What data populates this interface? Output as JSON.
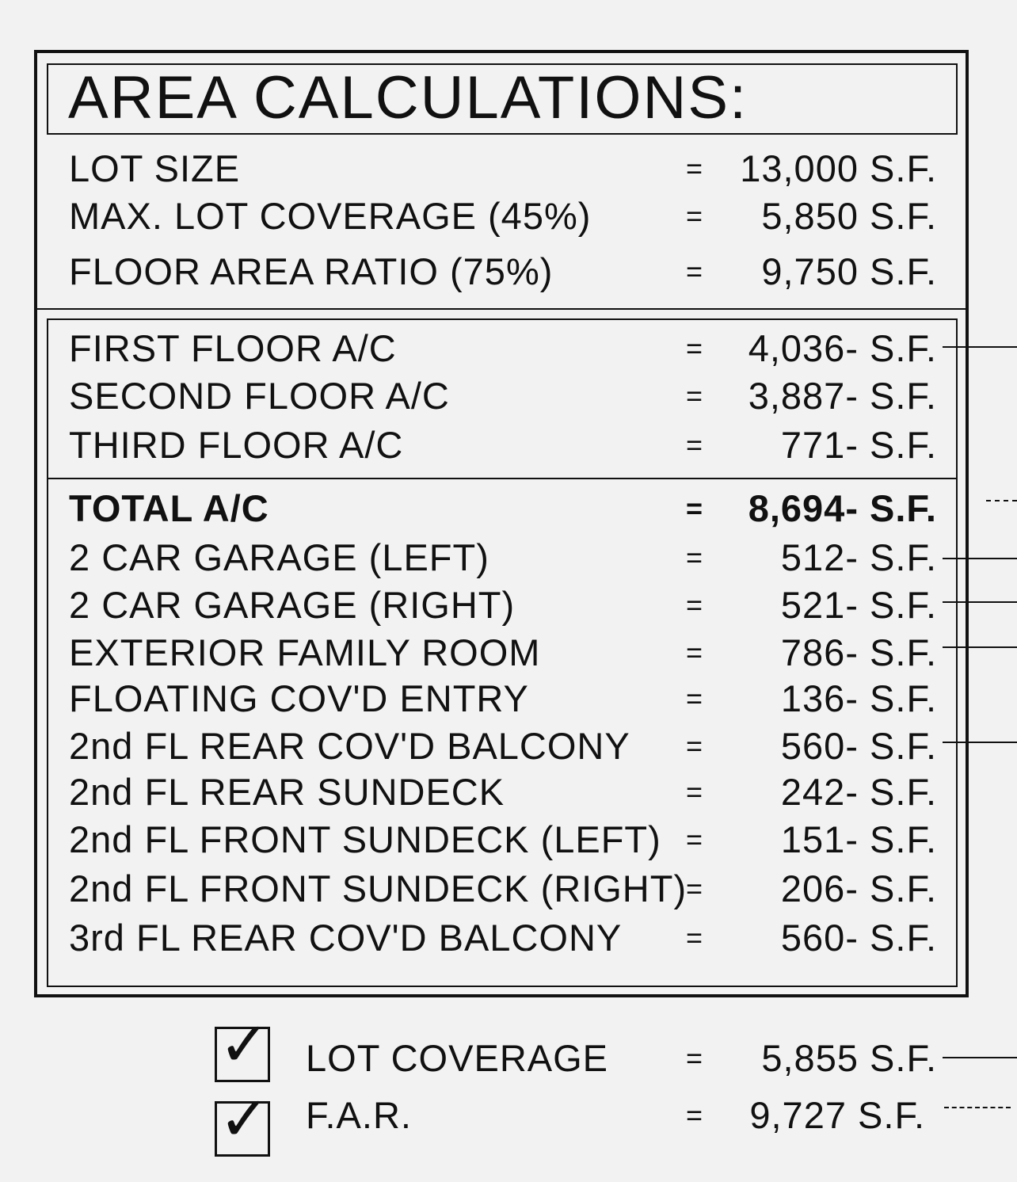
{
  "title": "AREA CALCULATIONS:",
  "lot_section": [
    {
      "label": "LOT SIZE",
      "eq": "=",
      "value": "13,000 S.F."
    },
    {
      "label": "MAX. LOT COVERAGE (45%)",
      "eq": "=",
      "value": "5,850 S.F."
    },
    {
      "label": "FLOOR AREA RATIO (75%)",
      "eq": "=",
      "value": "9,750 S.F."
    }
  ],
  "ac_section": [
    {
      "label": "FIRST FLOOR A/C",
      "eq": "=",
      "value": "4,036- S.F."
    },
    {
      "label": "SECOND FLOOR A/C",
      "eq": "=",
      "value": "3,887- S.F."
    },
    {
      "label": "THIRD FLOOR A/C",
      "eq": "=",
      "value": "771- S.F."
    }
  ],
  "other_section": [
    {
      "label": "TOTAL A/C",
      "eq": "=",
      "value": "8,694- S.F.",
      "bold": true
    },
    {
      "label": "2 CAR GARAGE (LEFT)",
      "eq": "=",
      "value": "512- S.F."
    },
    {
      "label": "2 CAR GARAGE (RIGHT)",
      "eq": "=",
      "value": "521- S.F."
    },
    {
      "label": "EXTERIOR FAMILY ROOM",
      "eq": "=",
      "value": "786- S.F."
    },
    {
      "label": "FLOATING COV'D ENTRY",
      "eq": "=",
      "value": "136- S.F."
    },
    {
      "label": "2nd FL REAR COV'D BALCONY",
      "eq": "=",
      "value": "560- S.F."
    },
    {
      "label": "2nd FL REAR SUNDECK",
      "eq": "=",
      "value": "242- S.F."
    },
    {
      "label": "2nd FL FRONT SUNDECK (LEFT)",
      "eq": "=",
      "value": "151- S.F."
    },
    {
      "label": "2nd FL FRONT SUNDECK (RIGHT)",
      "eq": "=",
      "value": "206- S.F."
    },
    {
      "label": "3rd FL REAR COV'D BALCONY",
      "eq": "=",
      "value": "560- S.F."
    }
  ],
  "summary": [
    {
      "label": "LOT COVERAGE",
      "eq": "=",
      "value": "5,855 S.F.",
      "checked": true
    },
    {
      "label": "F.A.R.",
      "eq": "=",
      "value": "9,727 S.F.",
      "checked": true
    }
  ],
  "checkmark_icon": "check-icon"
}
